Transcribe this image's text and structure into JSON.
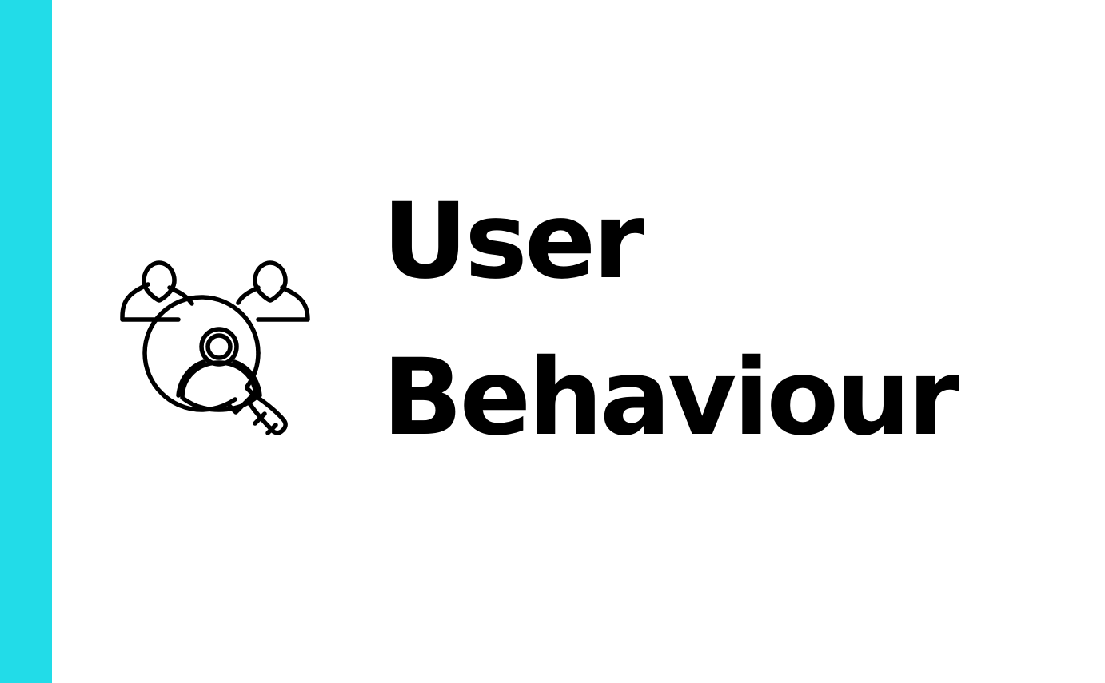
{
  "colors": {
    "accent": "#22DCE8",
    "background": "#FFFFFF",
    "text": "#000000"
  },
  "icon": {
    "name": "user-search-icon"
  },
  "title": {
    "line_1": "User",
    "line_2": "Behaviour"
  }
}
